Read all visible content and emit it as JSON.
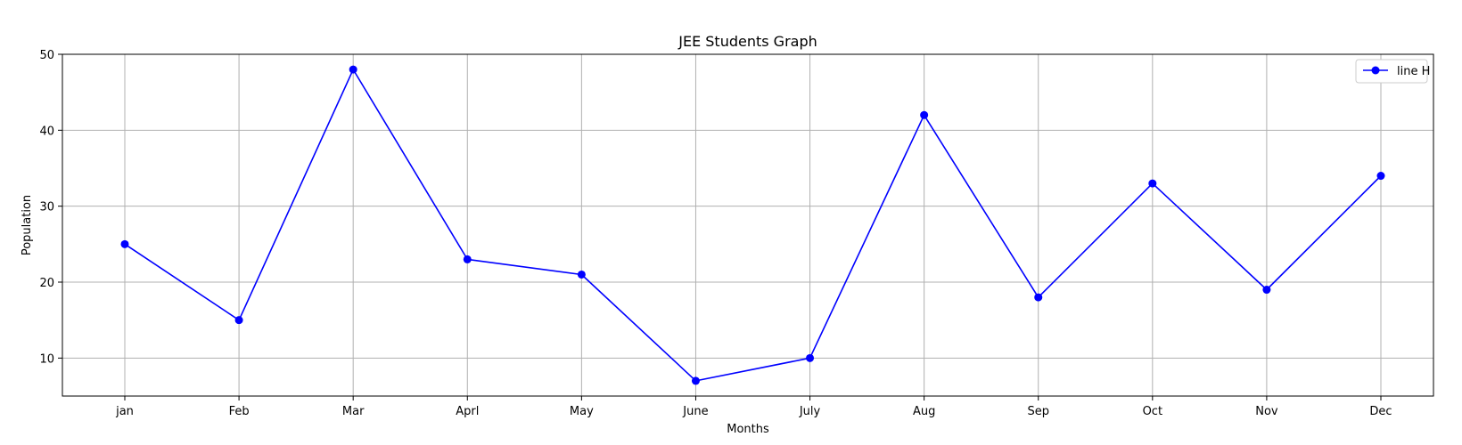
{
  "chart_data": {
    "type": "line",
    "title": "JEE Students Graph",
    "xlabel": "Months",
    "ylabel": "Population",
    "categories": [
      "jan",
      "Feb",
      "Mar",
      "Aprl",
      "May",
      "June",
      "July",
      "Aug",
      "Sep",
      "Oct",
      "Nov",
      "Dec"
    ],
    "series": [
      {
        "name": "line H",
        "values": [
          25,
          15,
          48,
          23,
          21,
          7,
          10,
          42,
          18,
          33,
          19,
          34
        ],
        "color": "#0000ff",
        "marker": "circle"
      }
    ],
    "ylim": [
      5,
      50
    ],
    "yticks": [
      10,
      20,
      30,
      40,
      50
    ],
    "grid": true,
    "legend_position": "top-right"
  }
}
